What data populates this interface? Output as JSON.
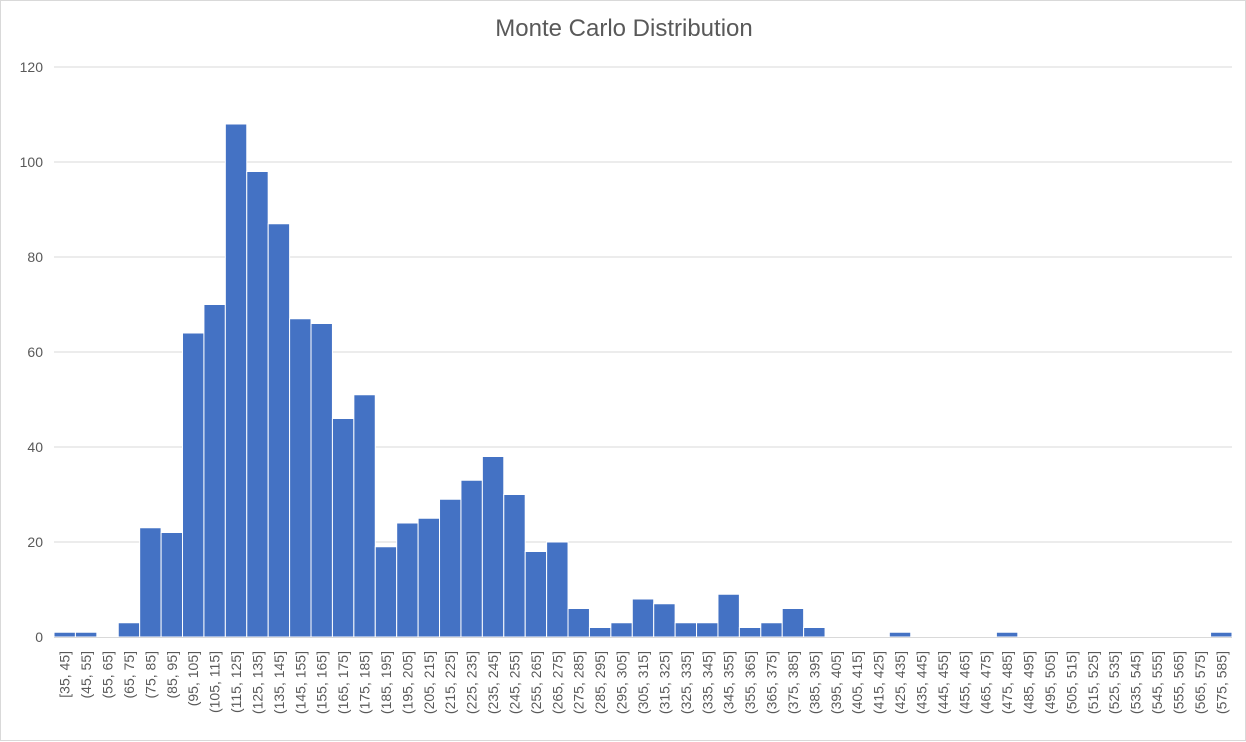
{
  "chart_data": {
    "type": "bar",
    "title": "Monte Carlo Distribution",
    "xlabel": "",
    "ylabel": "",
    "ylim": [
      0,
      120
    ],
    "yticks": [
      0,
      20,
      40,
      60,
      80,
      100,
      120
    ],
    "grid": true,
    "legend": "none",
    "bar_color": "#4472C4",
    "gridline_color": "#d9d9d9",
    "text_color": "#595959",
    "categories": [
      "[35, 45]",
      "(45, 55]",
      "(55, 65]",
      "(65, 75]",
      "(75, 85]",
      "(85, 95]",
      "(95, 105]",
      "(105, 115]",
      "(115, 125]",
      "(125, 135]",
      "(135, 145]",
      "(145, 155]",
      "(155, 165]",
      "(165, 175]",
      "(175, 185]",
      "(185, 195]",
      "(195, 205]",
      "(205, 215]",
      "(215, 225]",
      "(225, 235]",
      "(235, 245]",
      "(245, 255]",
      "(255, 265]",
      "(265, 275]",
      "(275, 285]",
      "(285, 295]",
      "(295, 305]",
      "(305, 315]",
      "(315, 325]",
      "(325, 335]",
      "(335, 345]",
      "(345, 355]",
      "(355, 365]",
      "(365, 375]",
      "(375, 385]",
      "(385, 395]",
      "(395, 405]",
      "(405, 415]",
      "(415, 425]",
      "(425, 435]",
      "(435, 445]",
      "(445, 455]",
      "(455, 465]",
      "(465, 475]",
      "(475, 485]",
      "(485, 495]",
      "(495, 505]",
      "(505, 515]",
      "(515, 525]",
      "(525, 535]",
      "(535, 545]",
      "(545, 555]",
      "(555, 565]",
      "(565, 575]",
      "(575, 585]"
    ],
    "values": [
      1,
      1,
      0,
      3,
      23,
      22,
      64,
      70,
      108,
      98,
      87,
      67,
      66,
      46,
      51,
      19,
      24,
      25,
      29,
      33,
      38,
      30,
      18,
      20,
      6,
      2,
      3,
      8,
      7,
      3,
      3,
      9,
      2,
      3,
      6,
      2,
      0,
      0,
      0,
      1,
      0,
      0,
      0,
      0,
      1,
      0,
      0,
      0,
      0,
      0,
      0,
      0,
      0,
      0,
      1
    ]
  }
}
